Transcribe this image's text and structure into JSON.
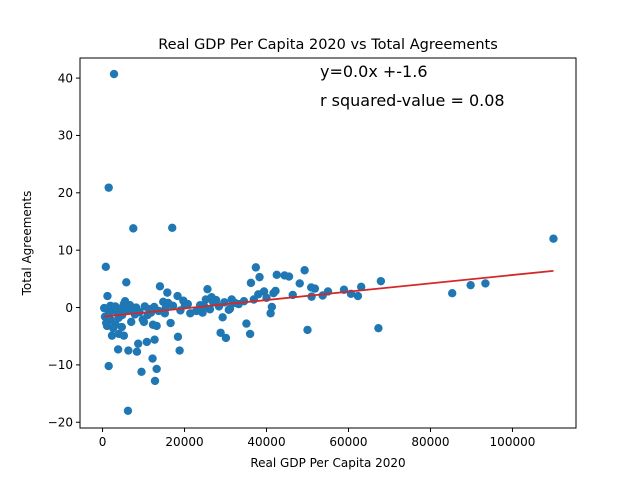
{
  "chart_data": {
    "type": "scatter",
    "title": "Real GDP Per Capita 2020 vs Total Agreements",
    "xlabel": "Real GDP Per Capita 2020",
    "ylabel": "Total Agreements",
    "xlim": [
      -5500,
      115500
    ],
    "ylim": [
      -21,
      43.5
    ],
    "xticks": [
      0,
      20000,
      40000,
      60000,
      80000,
      100000
    ],
    "yticks": [
      -20,
      -10,
      0,
      10,
      20,
      30,
      40
    ],
    "xtick_labels": [
      "0",
      "20000",
      "40000",
      "60000",
      "80000",
      "100000"
    ],
    "ytick_labels": [
      "−20",
      "−10",
      "0",
      "10",
      "20",
      "30",
      "40"
    ],
    "grid": false,
    "point_color": "#1f77b4",
    "line_color": "#d62728",
    "annotations": [
      "y=0.0x +-1.6",
      "r squared-value = 0.08"
    ],
    "regression": {
      "slope": 7.27e-05,
      "intercept": -1.6,
      "x_range": [
        400,
        110000
      ]
    },
    "points": [
      [
        2800,
        40.7
      ],
      [
        1500,
        20.9
      ],
      [
        7500,
        13.8
      ],
      [
        17000,
        13.9
      ],
      [
        800,
        7.1
      ],
      [
        110000,
        12.0
      ],
      [
        1200,
        2.0
      ],
      [
        1500,
        -10.2
      ],
      [
        6200,
        -18.0
      ],
      [
        5800,
        4.4
      ],
      [
        9500,
        -11.2
      ],
      [
        12800,
        -12.8
      ],
      [
        13200,
        -10.7
      ],
      [
        12200,
        -8.9
      ],
      [
        18800,
        -7.5
      ],
      [
        8700,
        -6.3
      ],
      [
        6300,
        -7.5
      ],
      [
        8400,
        -7.7
      ],
      [
        3800,
        -7.3
      ],
      [
        10800,
        -6.0
      ],
      [
        12700,
        -5.6
      ],
      [
        18400,
        -5.1
      ],
      [
        28800,
        -4.4
      ],
      [
        30100,
        -5.3
      ],
      [
        35100,
        -2.8
      ],
      [
        36000,
        -4.6
      ],
      [
        41000,
        -1.0
      ],
      [
        50000,
        -3.9
      ],
      [
        67300,
        -3.6
      ],
      [
        12300,
        -3.0
      ],
      [
        13200,
        -3.2
      ],
      [
        16600,
        -2.7
      ],
      [
        2300,
        -4.9
      ],
      [
        4000,
        -4.6
      ],
      [
        5200,
        -4.9
      ],
      [
        1100,
        -3.2
      ],
      [
        3200,
        -3.0
      ],
      [
        14000,
        3.7
      ],
      [
        15800,
        2.6
      ],
      [
        18300,
        2.0
      ],
      [
        14800,
        1.0
      ],
      [
        19700,
        1.2
      ],
      [
        16000,
        0.8
      ],
      [
        20100,
        0.4
      ],
      [
        21400,
        -1.0
      ],
      [
        23800,
        0.4
      ],
      [
        24400,
        -0.9
      ],
      [
        25600,
        3.2
      ],
      [
        26600,
        1.8
      ],
      [
        27700,
        1.3
      ],
      [
        28400,
        0.2
      ],
      [
        29300,
        -1.7
      ],
      [
        31500,
        1.4
      ],
      [
        32300,
        0.8
      ],
      [
        25200,
        1.4
      ],
      [
        36200,
        4.3
      ],
      [
        37400,
        7.0
      ],
      [
        38300,
        5.3
      ],
      [
        39400,
        2.8
      ],
      [
        36900,
        1.4
      ],
      [
        38000,
        2.3
      ],
      [
        40000,
        1.7
      ],
      [
        41700,
        2.5
      ],
      [
        42500,
        5.7
      ],
      [
        44400,
        5.6
      ],
      [
        45500,
        5.4
      ],
      [
        46400,
        2.2
      ],
      [
        48100,
        4.2
      ],
      [
        49300,
        6.5
      ],
      [
        50900,
        3.5
      ],
      [
        51800,
        3.3
      ],
      [
        51000,
        1.9
      ],
      [
        53700,
        2.1
      ],
      [
        55000,
        2.8
      ],
      [
        58900,
        3.1
      ],
      [
        60600,
        2.4
      ],
      [
        62300,
        2.0
      ],
      [
        63100,
        3.6
      ],
      [
        67900,
        4.6
      ],
      [
        85300,
        2.5
      ],
      [
        89800,
        3.9
      ],
      [
        93400,
        4.2
      ],
      [
        42200,
        2.9
      ],
      [
        41300,
        0.1
      ],
      [
        34500,
        1.1
      ],
      [
        33200,
        0.6
      ],
      [
        27000,
        0.9
      ],
      [
        30800,
        -0.4
      ],
      [
        19000,
        -0.5
      ],
      [
        9800,
        -2.1
      ],
      [
        7600,
        -0.5
      ],
      [
        7000,
        -2.5
      ],
      [
        6100,
        -0.5
      ],
      [
        4800,
        -1.3
      ],
      [
        3900,
        -1.8
      ],
      [
        2800,
        -0.5
      ],
      [
        2000,
        -2.2
      ],
      [
        1600,
        -0.9
      ],
      [
        900,
        -2.7
      ],
      [
        600,
        -1.6
      ],
      [
        400,
        -0.1
      ],
      [
        1900,
        0.3
      ],
      [
        3100,
        0.2
      ],
      [
        4300,
        -0.2
      ],
      [
        5500,
        1.1
      ],
      [
        6700,
        0.4
      ],
      [
        8200,
        0.0
      ],
      [
        9000,
        -0.8
      ],
      [
        10300,
        0.2
      ],
      [
        11400,
        -0.3
      ],
      [
        12600,
        0.1
      ],
      [
        13700,
        -0.6
      ],
      [
        15400,
        -0.1
      ],
      [
        17200,
        0.3
      ],
      [
        4700,
        -3.4
      ],
      [
        2600,
        -3.6
      ],
      [
        1300,
        -1.7
      ],
      [
        7900,
        -1.2
      ],
      [
        11000,
        -1.3
      ],
      [
        15200,
        -1.0
      ],
      [
        20800,
        0.6
      ],
      [
        22900,
        -0.6
      ],
      [
        24800,
        0.2
      ],
      [
        26200,
        -0.3
      ],
      [
        29700,
        0.9
      ],
      [
        31100,
        -0.2
      ],
      [
        10100,
        -2.5
      ],
      [
        11800,
        -0.9
      ],
      [
        3400,
        -0.7
      ],
      [
        5200,
        0.6
      ]
    ]
  }
}
